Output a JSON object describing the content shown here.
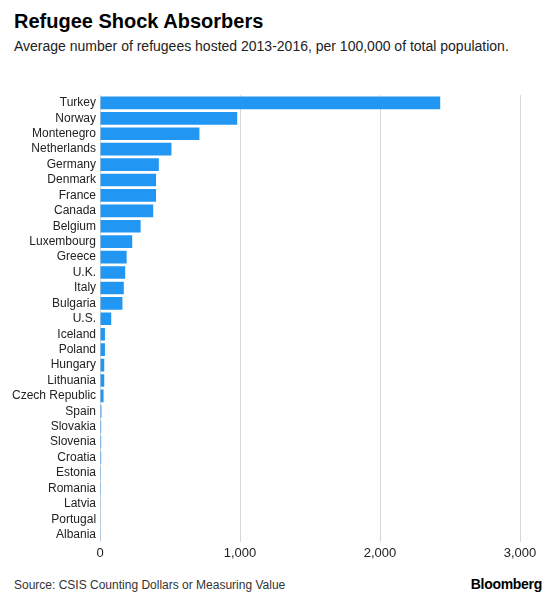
{
  "chart_data": {
    "type": "bar",
    "orientation": "horizontal",
    "title": "Refugee Shock Absorbers",
    "subtitle": "Average number of refugees hosted 2013-2016, per 100,000 of total population.",
    "source": "Source: CSIS Counting Dollars or Measuring Value",
    "credit": "Bloomberg",
    "categories": [
      "Turkey",
      "Norway",
      "Montenegro",
      "Netherlands",
      "Germany",
      "Denmark",
      "France",
      "Canada",
      "Belgium",
      "Luxembourg",
      "Greece",
      "U.K.",
      "Italy",
      "Bulgaria",
      "U.S.",
      "Iceland",
      "Poland",
      "Hungary",
      "Lithuania",
      "Czech Republic",
      "Spain",
      "Slovakia",
      "Slovenia",
      "Croatia",
      "Estonia",
      "Romania",
      "Latvia",
      "Portugal",
      "Albania"
    ],
    "values": [
      2430,
      980,
      710,
      510,
      420,
      400,
      400,
      380,
      290,
      230,
      190,
      180,
      170,
      160,
      80,
      35,
      35,
      30,
      30,
      25,
      10,
      8,
      8,
      8,
      6,
      6,
      5,
      5,
      5
    ],
    "color": "#2196f3",
    "xlim": [
      0,
      3000
    ],
    "xticks": [
      0,
      {
        "value": 1000,
        "label": "1,000"
      },
      {
        "value": 2000,
        "label": "2,000"
      },
      {
        "value": 3000,
        "label": "3,000"
      }
    ],
    "grid": true
  }
}
